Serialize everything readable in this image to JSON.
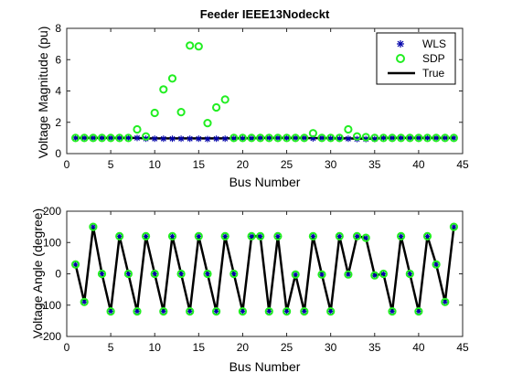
{
  "chart_data": [
    {
      "type": "scatter",
      "title": "Feeder IEEE13Nodeckt",
      "xlabel": "Bus Number",
      "ylabel": "Voltage Magnitude (pu)",
      "xlim": [
        0,
        45
      ],
      "ylim": [
        0,
        8
      ],
      "xticks": [
        "0",
        "5",
        "10",
        "15",
        "20",
        "25",
        "30",
        "35",
        "40",
        "45"
      ],
      "yticks": [
        "0",
        "2",
        "4",
        "6",
        "8"
      ],
      "legend": {
        "placement": "top-right",
        "entries": [
          "WLS",
          "SDP",
          "True"
        ]
      },
      "series": [
        {
          "name": "WLS",
          "marker": "star",
          "color": "#0000aa",
          "x": [
            1,
            2,
            3,
            4,
            5,
            6,
            7,
            8,
            9,
            10,
            11,
            12,
            13,
            14,
            15,
            16,
            17,
            18,
            19,
            20,
            21,
            22,
            23,
            24,
            25,
            26,
            27,
            28,
            29,
            30,
            31,
            32,
            33,
            34,
            35,
            36,
            37,
            38,
            39,
            40,
            41,
            42,
            43,
            44
          ],
          "y": [
            1.0,
            1.0,
            1.0,
            1.0,
            1.0,
            1.0,
            1.0,
            1.0,
            0.95,
            0.95,
            0.95,
            0.95,
            0.95,
            0.95,
            0.95,
            0.93,
            0.95,
            0.95,
            0.97,
            0.97,
            0.97,
            1.0,
            1.0,
            1.0,
            1.0,
            1.0,
            1.0,
            0.97,
            1.0,
            0.97,
            0.95,
            0.95,
            0.93,
            0.93,
            0.93,
            1.0,
            1.0,
            1.0,
            1.0,
            1.0,
            1.0,
            1.0,
            1.0,
            1.0
          ]
        },
        {
          "name": "SDP",
          "marker": "circle",
          "color": "#22ee22",
          "x": [
            1,
            2,
            3,
            4,
            5,
            6,
            7,
            8,
            9,
            10,
            11,
            12,
            13,
            14,
            15,
            16,
            17,
            18,
            19,
            20,
            21,
            22,
            23,
            24,
            25,
            26,
            27,
            28,
            29,
            30,
            31,
            32,
            33,
            34,
            35,
            36,
            37,
            38,
            39,
            40,
            41,
            42,
            43,
            44
          ],
          "y": [
            1.0,
            1.0,
            1.0,
            1.0,
            1.0,
            1.0,
            1.0,
            1.55,
            1.1,
            2.6,
            4.1,
            4.8,
            2.65,
            6.9,
            6.85,
            1.95,
            2.95,
            3.45,
            1.0,
            1.0,
            1.0,
            1.0,
            1.0,
            1.0,
            1.0,
            1.0,
            1.0,
            1.3,
            1.0,
            1.0,
            1.0,
            1.55,
            1.1,
            1.05,
            1.0,
            1.0,
            1.0,
            1.0,
            1.0,
            1.0,
            1.0,
            1.0,
            1.0,
            1.0
          ]
        },
        {
          "name": "True",
          "marker": "line",
          "color": "#000000",
          "x": [
            1,
            2,
            3,
            4,
            5,
            6,
            7,
            8,
            9,
            10,
            11,
            12,
            13,
            14,
            15,
            16,
            17,
            18,
            19,
            20,
            21,
            22,
            23,
            24,
            25,
            26,
            27,
            28,
            29,
            30,
            31,
            32,
            33,
            34,
            35,
            36,
            37,
            38,
            39,
            40,
            41,
            42,
            43,
            44
          ],
          "y": [
            1.0,
            1.0,
            1.0,
            1.0,
            1.0,
            1.0,
            1.0,
            1.0,
            0.97,
            0.97,
            0.97,
            0.97,
            0.97,
            0.97,
            0.97,
            0.97,
            0.97,
            0.97,
            0.98,
            0.98,
            0.98,
            1.0,
            1.0,
            1.0,
            1.0,
            1.0,
            1.0,
            0.98,
            1.0,
            0.98,
            0.97,
            0.97,
            0.96,
            0.96,
            0.96,
            1.0,
            1.0,
            1.0,
            1.0,
            1.0,
            1.0,
            1.0,
            1.0,
            1.0
          ]
        }
      ]
    },
    {
      "type": "line",
      "title": "",
      "xlabel": "Bus Number",
      "ylabel": "Voltage Angle (degree)",
      "xlim": [
        0,
        45
      ],
      "ylim": [
        -200,
        200
      ],
      "xticks": [
        "0",
        "5",
        "10",
        "15",
        "20",
        "25",
        "30",
        "35",
        "40",
        "45"
      ],
      "yticks": [
        "-200",
        "-100",
        "0",
        "100",
        "200"
      ],
      "series": [
        {
          "name": "WLS",
          "marker": "star",
          "color": "#0000aa",
          "x": [
            1,
            2,
            3,
            4,
            5,
            6,
            7,
            8,
            9,
            10,
            11,
            12,
            13,
            14,
            15,
            16,
            17,
            18,
            19,
            20,
            21,
            22,
            23,
            24,
            25,
            26,
            27,
            28,
            29,
            30,
            31,
            32,
            33,
            34,
            35,
            36,
            37,
            38,
            39,
            40,
            41,
            42,
            43,
            44
          ],
          "y": [
            30,
            -90,
            150,
            0,
            -120,
            120,
            0,
            -120,
            120,
            0,
            -120,
            120,
            0,
            -120,
            120,
            0,
            -120,
            120,
            0,
            -120,
            120,
            120,
            -120,
            120,
            -120,
            -2,
            -120,
            120,
            -2,
            -120,
            120,
            -2,
            120,
            115,
            -5,
            0,
            -120,
            120,
            0,
            -120,
            120,
            30,
            -90,
            150
          ]
        },
        {
          "name": "SDP",
          "marker": "circle",
          "color": "#22ee22",
          "x": [
            1,
            2,
            3,
            4,
            5,
            6,
            7,
            8,
            9,
            10,
            11,
            12,
            13,
            14,
            15,
            16,
            17,
            18,
            19,
            20,
            21,
            22,
            23,
            24,
            25,
            26,
            27,
            28,
            29,
            30,
            31,
            32,
            33,
            34,
            35,
            36,
            37,
            38,
            39,
            40,
            41,
            42,
            43,
            44
          ],
          "y": [
            30,
            -90,
            150,
            0,
            -120,
            120,
            0,
            -120,
            120,
            0,
            -120,
            120,
            0,
            -120,
            120,
            0,
            -120,
            120,
            0,
            -120,
            120,
            120,
            -120,
            120,
            -120,
            -2,
            -120,
            120,
            -2,
            -120,
            120,
            -2,
            120,
            115,
            -5,
            0,
            -120,
            120,
            0,
            -120,
            120,
            30,
            -90,
            150
          ]
        },
        {
          "name": "True",
          "marker": "line",
          "color": "#000000",
          "x": [
            1,
            2,
            3,
            4,
            5,
            6,
            7,
            8,
            9,
            10,
            11,
            12,
            13,
            14,
            15,
            16,
            17,
            18,
            19,
            20,
            21,
            22,
            23,
            24,
            25,
            26,
            27,
            28,
            29,
            30,
            31,
            32,
            33,
            34,
            35,
            36,
            37,
            38,
            39,
            40,
            41,
            42,
            43,
            44
          ],
          "y": [
            30,
            -90,
            150,
            0,
            -120,
            120,
            0,
            -120,
            120,
            0,
            -120,
            120,
            0,
            -120,
            120,
            0,
            -120,
            120,
            0,
            -120,
            120,
            120,
            -120,
            120,
            -120,
            -2,
            -120,
            120,
            -2,
            -120,
            120,
            -2,
            120,
            115,
            -5,
            0,
            -120,
            120,
            0,
            -120,
            120,
            30,
            -90,
            150
          ]
        }
      ]
    }
  ]
}
